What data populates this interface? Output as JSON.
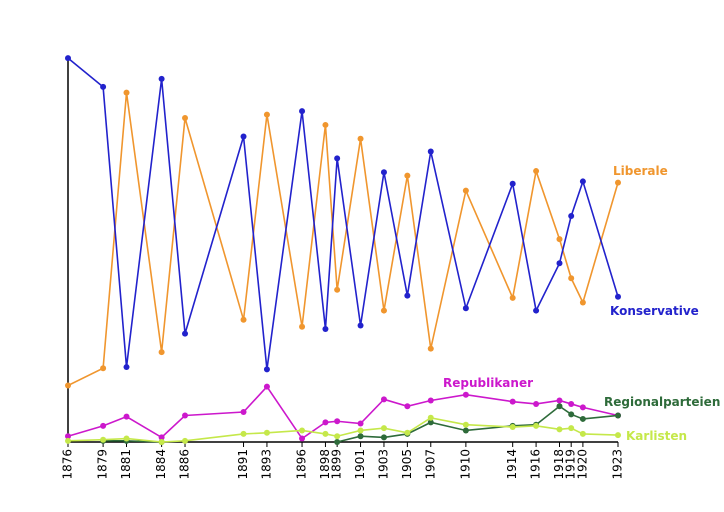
{
  "chart_data": {
    "type": "line",
    "x": [
      1876,
      1879,
      1881,
      1884,
      1886,
      1891,
      1893,
      1896,
      1898,
      1899,
      1901,
      1903,
      1905,
      1907,
      1910,
      1914,
      1916,
      1918,
      1919,
      1920,
      1923
    ],
    "xlim": [
      1876,
      1923
    ],
    "xticks": [
      1876,
      1879,
      1881,
      1884,
      1886,
      1891,
      1893,
      1896,
      1898,
      1899,
      1901,
      1903,
      1905,
      1907,
      1910,
      1914,
      1916,
      1918,
      1919,
      1920,
      1923
    ],
    "ylim": [
      0,
      340
    ],
    "series": [
      {
        "name": "Liberale",
        "color": "#f0962e",
        "values": [
          49,
          64,
          303,
          78,
          281,
          106,
          284,
          100,
          275,
          132,
          263,
          114,
          231,
          81,
          218,
          125,
          235,
          176,
          142,
          121,
          225
        ]
      },
      {
        "name": "Konservative",
        "color": "#2222cc",
        "values": [
          333,
          308,
          65,
          315,
          94,
          265,
          63,
          287,
          98,
          246,
          101,
          234,
          127,
          252,
          116,
          224,
          114,
          155,
          196,
          226,
          126
        ]
      },
      {
        "name": "Republikaner",
        "color": "#cc18cc",
        "values": [
          5,
          14,
          22,
          4,
          23,
          26,
          48,
          3,
          17,
          18,
          16,
          37,
          31,
          36,
          41,
          35,
          33,
          36,
          33,
          30,
          23
        ]
      },
      {
        "name": "Regionalparteien",
        "color": "#2e6b3a",
        "values": [
          null,
          1,
          1,
          0,
          null,
          null,
          null,
          null,
          null,
          0,
          5,
          4,
          7,
          17,
          10,
          14,
          15,
          31,
          24,
          20,
          23
        ]
      },
      {
        "name": "Karlisten",
        "color": "#c5e84a",
        "values": [
          1,
          2,
          3,
          0,
          1,
          7,
          8,
          10,
          7,
          5,
          10,
          12,
          8,
          21,
          15,
          13,
          14,
          11,
          12,
          7,
          6
        ]
      }
    ]
  }
}
